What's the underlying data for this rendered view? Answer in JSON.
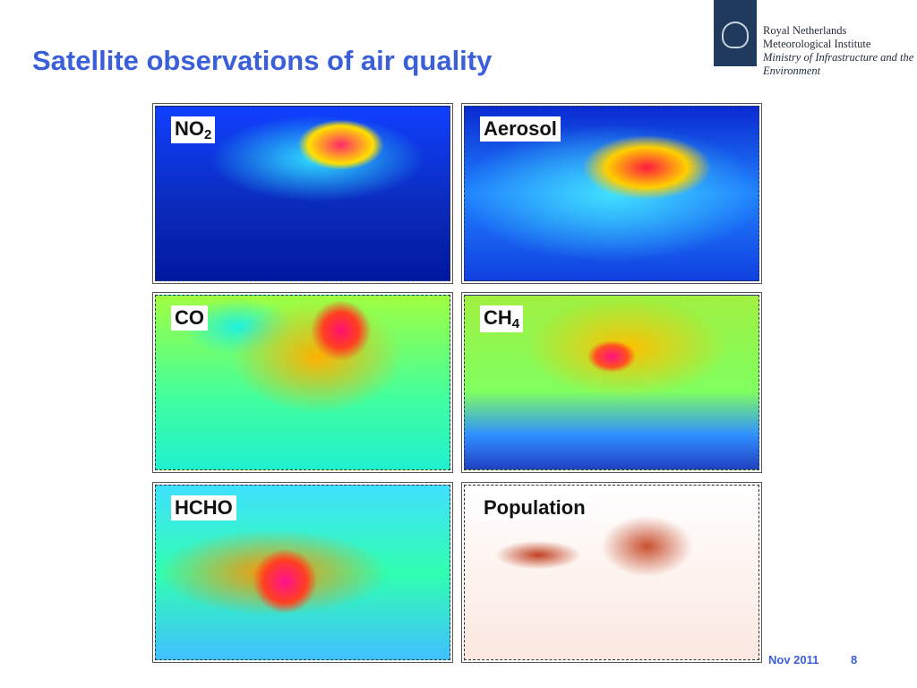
{
  "header": {
    "title": "Satellite observations of air quality"
  },
  "logo": {
    "lines": [
      "Royal Netherlands",
      "Meteorological Institute",
      "Ministry of Infrastructure and the",
      "Environment"
    ]
  },
  "panels": [
    {
      "label": "NO",
      "sub": "2"
    },
    {
      "label": "Aerosol"
    },
    {
      "label": "CO"
    },
    {
      "label": "CH",
      "sub": "4"
    },
    {
      "label": "HCHO"
    },
    {
      "label": "Population"
    }
  ],
  "footer": {
    "date": "Nov 2011",
    "page": "8"
  }
}
